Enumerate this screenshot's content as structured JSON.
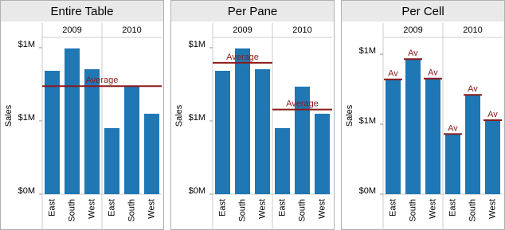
{
  "chart_data": [
    {
      "type": "bar",
      "title": "Entire Table",
      "y_label": "Sales",
      "color": "#1f77b4",
      "ref_color": "#8b1a1a",
      "ylim": [
        0,
        1070000
      ],
      "yticks": [
        {
          "value": 0,
          "label": "$0M"
        },
        {
          "value": 500000,
          "label": "$1M"
        },
        {
          "value": 1000000,
          "label": "$1M"
        }
      ],
      "reference": {
        "scope": "table",
        "label": "Average",
        "value": 737000
      },
      "panes": [
        {
          "name": "2009",
          "categories": [
            "East",
            "South",
            "West"
          ],
          "values": [
            842000,
            995000,
            853000
          ]
        },
        {
          "name": "2010",
          "categories": [
            "East",
            "South",
            "West"
          ],
          "values": [
            451000,
            734000,
            549000
          ]
        }
      ]
    },
    {
      "type": "bar",
      "title": "Per Pane",
      "y_label": "Sales",
      "color": "#1f77b4",
      "ref_color": "#8b1a1a",
      "ylim": [
        0,
        1070000
      ],
      "yticks": [
        {
          "value": 0,
          "label": "$0M"
        },
        {
          "value": 500000,
          "label": "$1M"
        },
        {
          "value": 1000000,
          "label": "$1M"
        }
      ],
      "reference": {
        "scope": "pane",
        "label": "Average"
      },
      "panes": [
        {
          "name": "2009",
          "categories": [
            "East",
            "South",
            "West"
          ],
          "values": [
            842000,
            995000,
            853000
          ],
          "reference_value": 897000
        },
        {
          "name": "2010",
          "categories": [
            "East",
            "South",
            "West"
          ],
          "values": [
            451000,
            734000,
            549000
          ],
          "reference_value": 578000
        }
      ]
    },
    {
      "type": "bar",
      "title": "Per Cell",
      "y_label": "Sales",
      "color": "#1f77b4",
      "ref_color": "#8b1a1a",
      "ylim": [
        0,
        1120000
      ],
      "yticks": [
        {
          "value": 0,
          "label": "$0M"
        },
        {
          "value": 500000,
          "label": "$1M"
        },
        {
          "value": 1000000,
          "label": "$1M"
        }
      ],
      "reference": {
        "scope": "cell",
        "label": "Av"
      },
      "panes": [
        {
          "name": "2009",
          "categories": [
            "East",
            "South",
            "West"
          ],
          "values": [
            820000,
            965000,
            826000
          ]
        },
        {
          "name": "2010",
          "categories": [
            "East",
            "South",
            "West"
          ],
          "values": [
            430000,
            709000,
            529000
          ]
        }
      ]
    }
  ]
}
